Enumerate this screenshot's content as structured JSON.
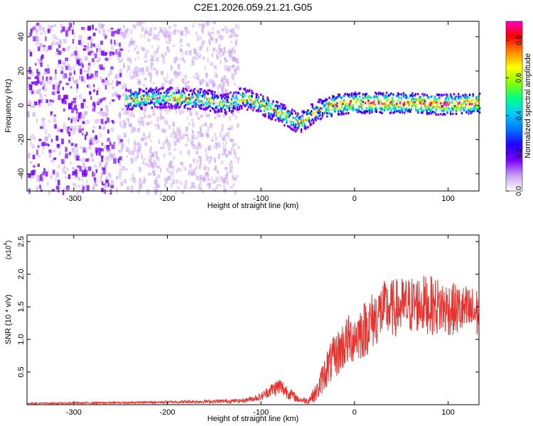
{
  "title": "C2E1.2026.059.21.21.G05",
  "chart_data": [
    {
      "type": "heatmap",
      "xlabel": "Height of straight line (km)",
      "ylabel": "Frequency (Hz)",
      "xlim": [
        -350,
        133
      ],
      "ylim": [
        -50,
        49
      ],
      "x_ticks": [
        -300,
        -200,
        -100,
        0,
        100
      ],
      "x_tick_labels": [
        "-300",
        "-200",
        "-100",
        "0",
        "100"
      ],
      "y_ticks": [
        -40,
        -20,
        0,
        20,
        40
      ],
      "y_tick_labels": [
        "-40",
        "-20",
        "0",
        "20",
        "40"
      ],
      "colorbar": {
        "label": "Normalized spectral amplitude",
        "range": [
          0.0,
          0.9
        ],
        "ticks": [
          0.0,
          0.2,
          0.4,
          0.6,
          0.8
        ],
        "tick_labels": [
          "0.0",
          "0.2",
          "0.4",
          "0.6",
          "0.8"
        ],
        "colormap": [
          "#ffffff",
          "#c7a0f0",
          "#7a00ff",
          "#2200ff",
          "#0077ff",
          "#00ccff",
          "#00ff88",
          "#88ff00",
          "#ffff00",
          "#ff8800",
          "#ff0000",
          "#ff00bb"
        ]
      },
      "ridge": {
        "description_points_x": [
          -245,
          -200,
          -160,
          -140,
          -120,
          -100,
          -80,
          -60,
          -40,
          -20,
          0,
          50,
          100,
          133
        ],
        "center_freq": [
          4,
          5,
          4,
          1,
          5,
          1,
          -4,
          -10,
          -2,
          1,
          2,
          2,
          1,
          2
        ],
        "start_x": -245,
        "noise_region_x": [
          -350,
          -125
        ]
      },
      "grid": false
    },
    {
      "type": "line",
      "xlabel": "Height of straight line (km)",
      "ylabel": "SNR (10 * v/v)",
      "scale_note": "(x10",
      "scale_exp": "4",
      "xlim": [
        -350,
        133
      ],
      "ylim": [
        0,
        2.6
      ],
      "x_ticks": [
        -300,
        -200,
        -100,
        0,
        100
      ],
      "x_tick_labels": [
        "-300",
        "-200",
        "-100",
        "0",
        "100"
      ],
      "y_ticks": [
        0.5,
        1.0,
        1.5,
        2.0,
        2.5
      ],
      "y_tick_labels": [
        "0.5",
        "1.0",
        "1.5",
        "2.0",
        "2.5"
      ],
      "series": [
        {
          "color": "#e8322e",
          "envelope_x": [
            -350,
            -250,
            -200,
            -150,
            -120,
            -100,
            -90,
            -80,
            -70,
            -60,
            -50,
            -40,
            -30,
            -20,
            -10,
            0,
            10,
            20,
            30,
            50,
            70,
            90,
            110,
            133
          ],
          "envelope_mean": [
            0.02,
            0.03,
            0.04,
            0.05,
            0.06,
            0.12,
            0.22,
            0.28,
            0.18,
            0.08,
            0.06,
            0.2,
            0.55,
            0.75,
            0.95,
            1.05,
            1.15,
            1.3,
            1.45,
            1.5,
            1.55,
            1.5,
            1.45,
            1.4
          ],
          "envelope_spread": [
            0.01,
            0.015,
            0.02,
            0.03,
            0.03,
            0.06,
            0.1,
            0.15,
            0.1,
            0.05,
            0.05,
            0.15,
            0.3,
            0.35,
            0.4,
            0.4,
            0.45,
            0.45,
            0.45,
            0.45,
            0.45,
            0.45,
            0.4,
            0.4
          ]
        }
      ],
      "grid": false
    }
  ]
}
